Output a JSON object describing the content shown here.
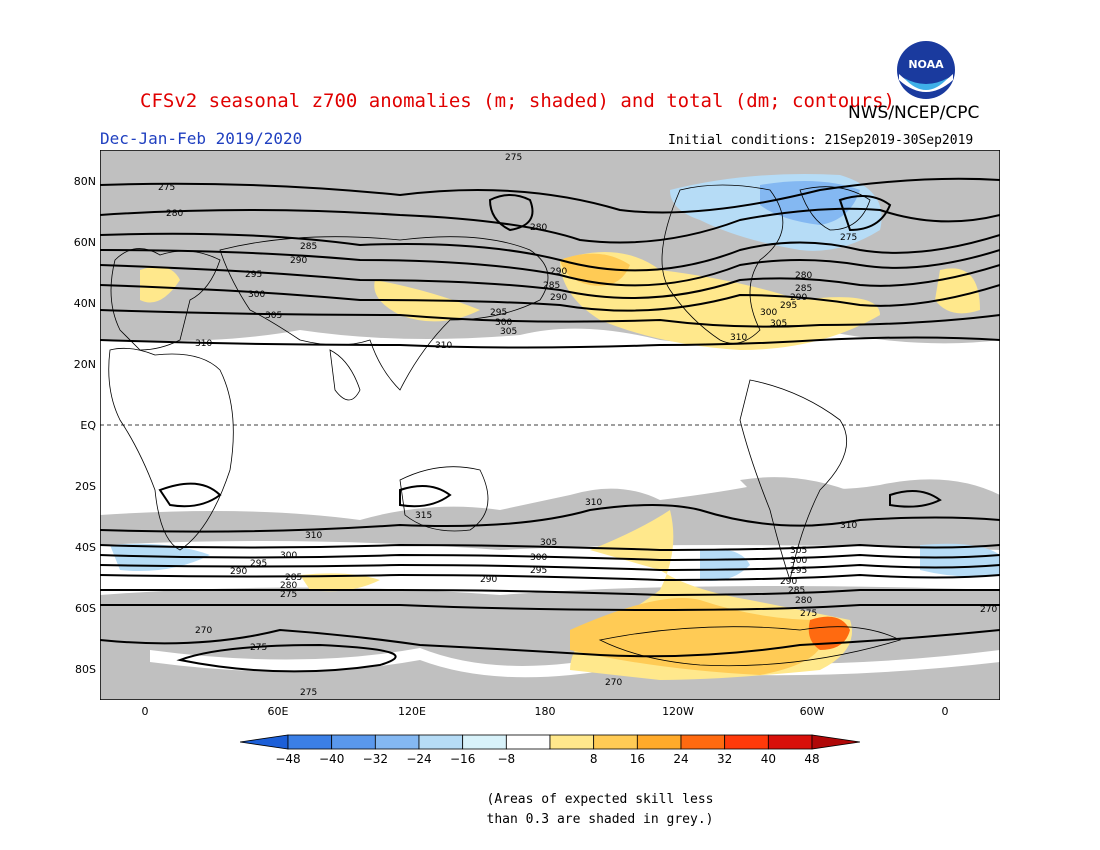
{
  "header": {
    "title": "CFSv2 seasonal z700 anomalies (m; shaded) and total (dm; contours)",
    "agency": "NWS/NCEP/CPC",
    "season": "Dec-Jan-Feb 2019/2020",
    "initial_conditions": "Initial conditions: 21Sep2019-30Sep2019",
    "logo_text": "NOAA"
  },
  "map": {
    "lat_labels": [
      "80N",
      "60N",
      "40N",
      "20N",
      "EQ",
      "20S",
      "40S",
      "60S",
      "80S"
    ],
    "lon_labels": [
      "0",
      "60E",
      "120E",
      "180",
      "120W",
      "60W",
      "0"
    ],
    "contour_labels": [
      "275",
      "280",
      "285",
      "290",
      "295",
      "300",
      "305",
      "310",
      "315",
      "270"
    ],
    "colors": {
      "skill_grey": "#c0c0c0",
      "land_outline": "#000000"
    }
  },
  "colorbar": {
    "ticks": [
      "-48",
      "-40",
      "-32",
      "-24",
      "-16",
      "-8",
      "8",
      "16",
      "24",
      "32",
      "40",
      "48"
    ],
    "colors": [
      "#1c5fd8",
      "#3b7fe6",
      "#5a98ec",
      "#84b8f2",
      "#b6dcf6",
      "#d8f2fa",
      "#ffffff",
      "#ffe88c",
      "#ffcb55",
      "#ffaa2a",
      "#ff6a10",
      "#ff3a0a",
      "#d8100a",
      "#b00808"
    ]
  },
  "note": {
    "line1": "(Areas of expected skill less",
    "line2": "than 0.3 are shaded in grey.)"
  }
}
